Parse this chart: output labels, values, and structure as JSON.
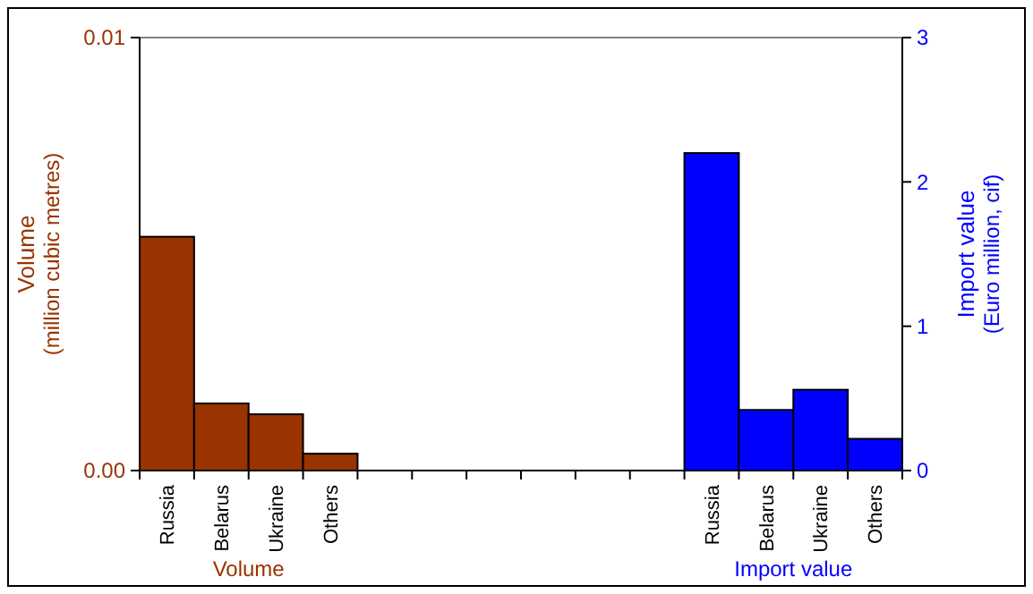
{
  "chart_data": {
    "type": "bar",
    "categories": [
      "Russia",
      "Belarus",
      "Ukraine",
      "Others",
      null,
      null,
      null,
      null,
      null,
      null,
      "Russia",
      "Belarus",
      "Ukraine",
      "Others"
    ],
    "series": [
      {
        "name": "Volume",
        "color": "#993300",
        "values": [
          0.0054,
          0.00155,
          0.0013,
          0.00039,
          null,
          null,
          null,
          null,
          null,
          null,
          null,
          null,
          null,
          null
        ]
      },
      {
        "name": "Import value",
        "color": "#0000ff",
        "axis": "y2",
        "values": [
          null,
          null,
          null,
          null,
          null,
          null,
          null,
          null,
          null,
          null,
          2.2,
          0.42,
          0.56,
          0.22
        ]
      }
    ],
    "ylabel": "Volume\n(million cubic metres)",
    "y2label": "Import value\n(Euro million, cif)",
    "ylim": [
      0,
      0.01
    ],
    "yticks": [
      {
        "value": 0,
        "label": "0.00"
      },
      {
        "value": 0.01,
        "label": "0.01"
      }
    ],
    "y2lim": [
      0,
      3
    ],
    "y2ticks": [
      0,
      1,
      2,
      3
    ]
  }
}
